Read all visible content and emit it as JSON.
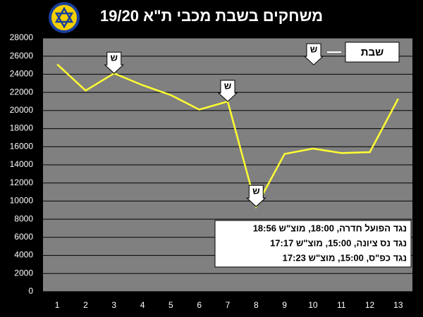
{
  "chart_data": {
    "type": "line",
    "title": "משחקים בשבת מכבי ת\"א 19/20",
    "x": [
      1,
      2,
      3,
      4,
      5,
      6,
      7,
      8,
      9,
      10,
      11,
      12,
      13
    ],
    "values": [
      25100,
      22200,
      24100,
      22800,
      21700,
      20100,
      21000,
      9400,
      15200,
      15800,
      15300,
      15400,
      21300
    ],
    "color": "#ffff33",
    "xlim": [
      0.5,
      13.5
    ],
    "xticks": [
      1,
      2,
      3,
      4,
      5,
      6,
      7,
      8,
      9,
      10,
      11,
      12,
      13
    ],
    "ylim": [
      0,
      28000
    ],
    "yticks": [
      0,
      2000,
      4000,
      6000,
      8000,
      10000,
      12000,
      14000,
      16000,
      18000,
      20000,
      22000,
      24000,
      26000,
      28000
    ],
    "grid": true,
    "markers": [
      {
        "x": 3,
        "label": "ש"
      },
      {
        "x": 7,
        "label": "ש"
      },
      {
        "x": 8,
        "label": "ש"
      }
    ],
    "legend": {
      "symbol": "ש",
      "label": "שבת"
    },
    "notes": [
      "נגד הפועל חדרה, 18:00, מוצ\"ש 18:56",
      "נגד נס ציונה, 15:00, מוצ\"ש 17:17",
      "נגד כפ\"ס, 15:00, מוצ\"ש 17:23"
    ]
  }
}
